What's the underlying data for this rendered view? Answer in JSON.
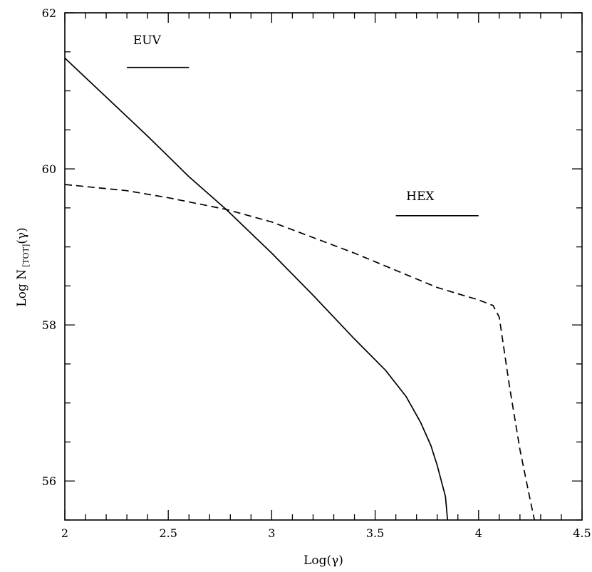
{
  "chart_data": {
    "type": "line",
    "title": "",
    "xlabel": "Log(γ)",
    "ylabel_main": "Log N",
    "ylabel_sub": "[TOT]",
    "ylabel_tail": "(γ)",
    "xlim": [
      2,
      4.5
    ],
    "ylim": [
      55.5,
      62
    ],
    "x_ticks": [
      2,
      2.5,
      3,
      3.5,
      4,
      4.5
    ],
    "x_tick_labels": [
      "2",
      "2.5",
      "3",
      "3.5",
      "4",
      "4.5"
    ],
    "y_ticks": [
      56,
      58,
      60,
      62
    ],
    "y_tick_labels": [
      "56",
      "58",
      "60",
      "62"
    ],
    "x_minor_step": 0.1,
    "y_minor_step": 0.5,
    "grid": false,
    "series": [
      {
        "style": "solid",
        "color": "#000000",
        "x": [
          2.0,
          2.2,
          2.4,
          2.6,
          2.78,
          3.0,
          3.2,
          3.4,
          3.55,
          3.65,
          3.72,
          3.77,
          3.8,
          3.82,
          3.84,
          3.85
        ],
        "y": [
          61.42,
          60.92,
          60.42,
          59.9,
          59.48,
          58.92,
          58.38,
          57.82,
          57.42,
          57.08,
          56.75,
          56.45,
          56.2,
          56.0,
          55.8,
          55.5
        ]
      },
      {
        "style": "dashed",
        "color": "#000000",
        "x": [
          2.0,
          2.3,
          2.5,
          2.78,
          3.0,
          3.2,
          3.4,
          3.6,
          3.8,
          4.0,
          4.07,
          4.1,
          4.15,
          4.2,
          4.25,
          4.27
        ],
        "y": [
          59.8,
          59.72,
          59.63,
          59.48,
          59.32,
          59.12,
          58.92,
          58.7,
          58.48,
          58.32,
          58.25,
          58.1,
          57.2,
          56.4,
          55.75,
          55.5
        ]
      }
    ],
    "annotations": [
      {
        "text": "EUV",
        "label_x": 2.33,
        "label_y": 61.6,
        "bar_x": [
          2.3,
          2.6
        ],
        "bar_y": 61.3
      },
      {
        "text": "HEX",
        "label_x": 3.65,
        "label_y": 59.6,
        "bar_x": [
          3.6,
          4.0
        ],
        "bar_y": 59.4
      }
    ]
  }
}
